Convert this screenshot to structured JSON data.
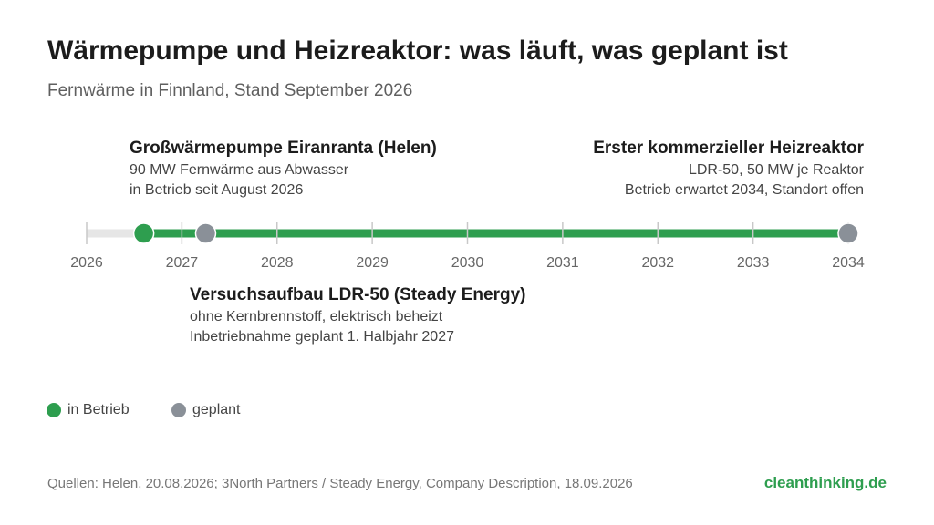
{
  "title": "Wärmepumpe und Heizreaktor: was läuft, was geplant ist",
  "subtitle": "Fernwärme in Finnland, Stand September 2026",
  "colors": {
    "operating": "#2e9e4f",
    "planned": "#8a9098",
    "track_past": "#e6e6e6",
    "ticks": "#c8c8c8",
    "brand": "#2e9e4f"
  },
  "chart_data": {
    "type": "timeline",
    "xlim": [
      2026,
      2034
    ],
    "ticks": [
      "2026",
      "2027",
      "2028",
      "2029",
      "2030",
      "2031",
      "2032",
      "2033",
      "2034"
    ],
    "active_line": [
      2026.6,
      2034
    ],
    "events": [
      {
        "x": 2026.6,
        "status": "in Betrieb",
        "title": "Großwärmepumpe Eiranranta (Helen)",
        "lines": [
          "90 MW Fernwärme aus Abwasser",
          "in Betrieb seit August 2026"
        ]
      },
      {
        "x": 2027.25,
        "status": "geplant",
        "title": "Versuchsaufbau LDR-50 (Steady Energy)",
        "lines": [
          "ohne Kernbrennstoff, elektrisch beheizt",
          "Inbetriebnahme geplant 1. Halbjahr 2027"
        ]
      },
      {
        "x": 2034,
        "status": "geplant",
        "title": "Erster kommerzieller Heizreaktor",
        "lines": [
          "LDR-50, 50 MW je Reaktor",
          "Betrieb erwartet 2034, Standort offen"
        ]
      }
    ]
  },
  "legend": [
    {
      "label": "in Betrieb",
      "color": "#2e9e4f"
    },
    {
      "label": "geplant",
      "color": "#8a9098"
    }
  ],
  "source": "Quellen: Helen, 20.08.2026; 3North Partners / Steady Energy, Company Description, 18.09.2026",
  "brand": "cleanthinking.de"
}
